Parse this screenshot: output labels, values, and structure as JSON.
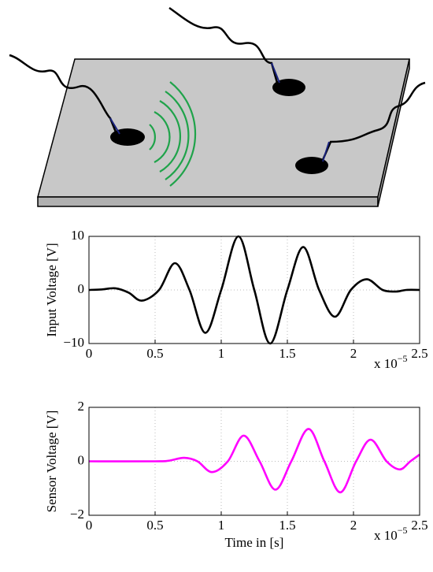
{
  "chart_data": [
    {
      "type": "line",
      "ylabel": "Input Voltage [V]",
      "x_multiplier": "x 10",
      "x_exponent": "−5",
      "x": [
        0,
        0.1,
        0.2,
        0.3,
        0.4,
        0.53,
        0.65,
        0.76,
        0.88,
        1.0,
        1.13,
        1.25,
        1.37,
        1.5,
        1.62,
        1.74,
        1.86,
        1.98,
        2.1,
        2.22,
        2.32,
        2.4,
        2.5
      ],
      "values": [
        0,
        0.1,
        0.3,
        -0.5,
        -2,
        0,
        5,
        0,
        -8,
        0,
        10,
        0,
        -10,
        0,
        8,
        0,
        -5,
        0,
        2,
        0,
        -0.3,
        0,
        0
      ],
      "color": "#000000",
      "xlim": [
        0,
        2.5
      ],
      "ylim": [
        -10,
        10
      ],
      "xticks": [
        0,
        0.5,
        1,
        1.5,
        2,
        2.5
      ],
      "yticks": [
        {
          "value": -10,
          "label": "−10"
        },
        0,
        10
      ],
      "grid": true
    },
    {
      "type": "line",
      "ylabel": "Sensor Voltage [V]",
      "xlabel": "Time in [s]",
      "x_multiplier": "x 10",
      "x_exponent": "−5",
      "x": [
        0,
        0.5,
        0.6,
        0.72,
        0.82,
        0.93,
        1.05,
        1.17,
        1.29,
        1.41,
        1.53,
        1.66,
        1.78,
        1.9,
        2.02,
        2.13,
        2.25,
        2.35,
        2.43,
        2.5
      ],
      "values": [
        0,
        0,
        0.02,
        0.13,
        0,
        -0.4,
        0,
        0.95,
        0,
        -1.05,
        0,
        1.2,
        0,
        -1.15,
        0,
        0.8,
        0,
        -0.3,
        0,
        0.25
      ],
      "color": "#ff00ff",
      "xlim": [
        0,
        2.5
      ],
      "ylim": [
        -2,
        2
      ],
      "xticks": [
        0,
        0.5,
        1,
        1.5,
        2,
        2.5
      ],
      "yticks": [
        {
          "value": -2,
          "label": "−2"
        },
        0,
        2
      ],
      "grid": true
    }
  ]
}
